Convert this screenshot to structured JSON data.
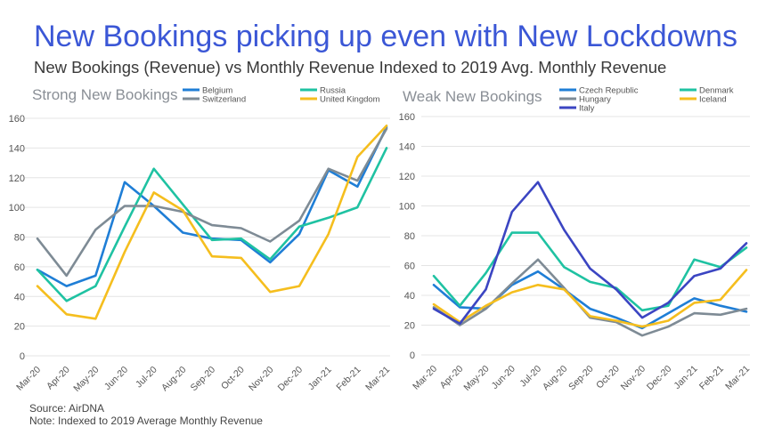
{
  "title": "New Bookings picking up even with New Lockdowns",
  "subtitle": "New Bookings (Revenue) vs Monthly Revenue Indexed to 2019 Avg. Monthly Revenue",
  "footer": {
    "source": "Source: AirDNA",
    "note": "Note: Indexed to 2019 Average Monthly Revenue"
  },
  "chart_data": [
    {
      "type": "line",
      "title": "Strong New Bookings",
      "categories": [
        "Mar-20",
        "Apr-20",
        "May-20",
        "Jun-20",
        "Jul-20",
        "Aug-20",
        "Sep-20",
        "Oct-20",
        "Nov-20",
        "Dec-20",
        "Jan-21",
        "Feb-21",
        "Mar-21"
      ],
      "ylim": [
        0,
        160
      ],
      "yticks": [
        0,
        20,
        40,
        60,
        80,
        100,
        120,
        140,
        160
      ],
      "grid": true,
      "legend_position": "top",
      "series": [
        {
          "name": "Belgium",
          "color": "#1f7ed6",
          "values": [
            58,
            47,
            54,
            117,
            101,
            83,
            79,
            78,
            63,
            82,
            125,
            114,
            154
          ]
        },
        {
          "name": "Russia",
          "color": "#1fc2a2",
          "values": [
            58,
            37,
            47,
            87,
            126,
            102,
            78,
            79,
            65,
            87,
            93,
            100,
            140
          ]
        },
        {
          "name": "Switzerland",
          "color": "#7e8b95",
          "values": [
            79,
            54,
            85,
            101,
            101,
            97,
            88,
            86,
            77,
            91,
            126,
            118,
            153
          ]
        },
        {
          "name": "United Kingdom",
          "color": "#f5be1e",
          "values": [
            47,
            28,
            25,
            70,
            110,
            98,
            67,
            66,
            43,
            47,
            82,
            134,
            155
          ]
        }
      ]
    },
    {
      "type": "line",
      "title": "Weak New Bookings",
      "categories": [
        "Mar-20",
        "Apr-20",
        "May-20",
        "Jun-20",
        "Jul-20",
        "Aug-20",
        "Sep-20",
        "Oct-20",
        "Nov-20",
        "Dec-20",
        "Jan-21",
        "Feb-21",
        "Mar-21"
      ],
      "ylim": [
        0,
        160
      ],
      "yticks": [
        0,
        20,
        40,
        60,
        80,
        100,
        120,
        140,
        160
      ],
      "grid": true,
      "legend_position": "top",
      "series": [
        {
          "name": "Czech Republic",
          "color": "#1f7ed6",
          "values": [
            47,
            32,
            31,
            47,
            56,
            44,
            31,
            25,
            18,
            28,
            38,
            33,
            29
          ]
        },
        {
          "name": "Denmark",
          "color": "#1fc2a2",
          "values": [
            53,
            33,
            55,
            82,
            82,
            59,
            49,
            45,
            30,
            33,
            64,
            59,
            72
          ]
        },
        {
          "name": "Hungary",
          "color": "#7e8b95",
          "values": [
            32,
            20,
            31,
            48,
            64,
            45,
            25,
            22,
            13,
            19,
            28,
            27,
            31
          ]
        },
        {
          "name": "Iceland",
          "color": "#f5be1e",
          "values": [
            34,
            22,
            33,
            42,
            47,
            44,
            26,
            23,
            19,
            23,
            35,
            37,
            57
          ]
        },
        {
          "name": "Italy",
          "color": "#3b45c2",
          "values": [
            31,
            21,
            44,
            96,
            116,
            84,
            58,
            44,
            25,
            35,
            53,
            58,
            75
          ]
        }
      ]
    }
  ]
}
